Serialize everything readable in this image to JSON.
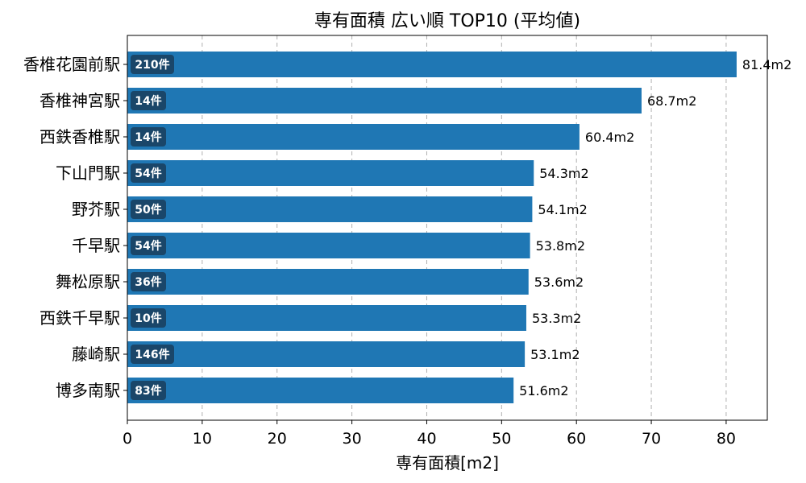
{
  "chart_data": {
    "type": "bar",
    "orientation": "horizontal",
    "title": "専有面積 広い順 TOP10 (平均値)",
    "xlabel": "専有面積[m2]",
    "ylabel": "",
    "xlim": [
      0,
      85.5
    ],
    "xticks": [
      0,
      10,
      20,
      30,
      40,
      50,
      60,
      70,
      80
    ],
    "grid": "x-dashed",
    "categories": [
      "香椎花園前駅",
      "香椎神宮駅",
      "西鉄香椎駅",
      "下山門駅",
      "野芥駅",
      "千早駅",
      "舞松原駅",
      "西鉄千早駅",
      "藤崎駅",
      "博多南駅"
    ],
    "values": [
      81.4,
      68.7,
      60.4,
      54.3,
      54.1,
      53.8,
      53.6,
      53.3,
      53.1,
      51.6
    ],
    "value_labels": [
      "81.4m2",
      "68.7m2",
      "60.4m2",
      "54.3m2",
      "54.1m2",
      "53.8m2",
      "53.6m2",
      "53.3m2",
      "53.1m2",
      "51.6m2"
    ],
    "count_labels": [
      "210件",
      "14件",
      "14件",
      "54件",
      "50件",
      "54件",
      "36件",
      "10件",
      "146件",
      "83件"
    ],
    "bar_color": "#1f77b4",
    "badge_color": "#1a3d5c"
  }
}
